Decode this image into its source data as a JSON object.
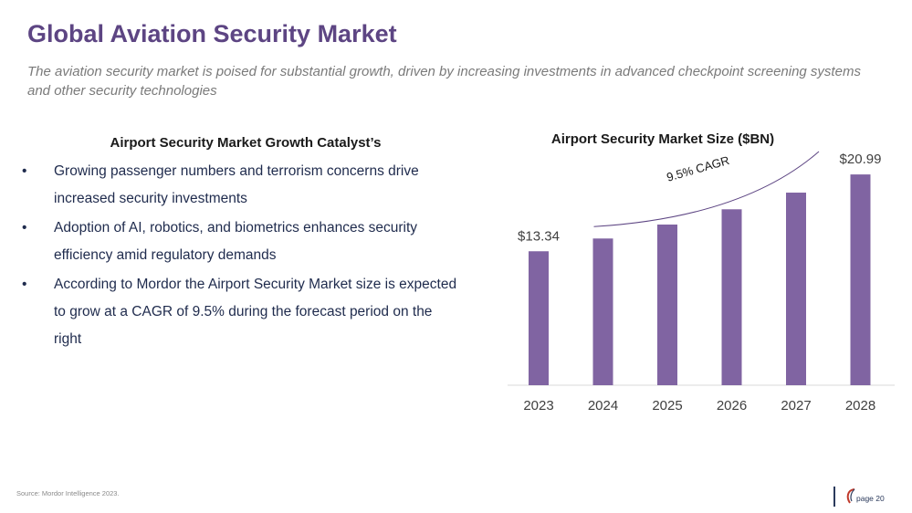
{
  "header": {
    "title": "Global Aviation Security Market",
    "subtitle": "The aviation security market is poised for substantial growth, driven by increasing investments in advanced checkpoint screening systems and other security technologies"
  },
  "left_panel": {
    "heading": "Airport Security Market Growth Catalyst’s",
    "bullet_char": "•",
    "bullets": [
      "Growing passenger numbers and terrorism concerns drive increased security investments",
      "Adoption of AI, robotics, and biometrics enhances security efficiency amid regulatory demands",
      "According to Mordor the Airport Security Market size is expected to grow at a CAGR of 9.5% during the forecast period on the right"
    ]
  },
  "chart_data": {
    "type": "bar",
    "title": "Airport Security Market Size ($BN)",
    "categories": [
      "2023",
      "2024",
      "2025",
      "2026",
      "2027",
      "2028"
    ],
    "values": [
      13.34,
      14.61,
      16.0,
      17.52,
      19.18,
      20.99
    ],
    "data_labels": [
      "$13.34",
      "",
      "",
      "",
      "",
      "$20.99"
    ],
    "annotation": "9.5% CAGR",
    "ylim": [
      0,
      22
    ],
    "bar_color": "#8064a2",
    "grid": false
  },
  "footer": {
    "source": "Source: Mordor Intelligence 2023.",
    "page_label": "page 20"
  },
  "colors": {
    "title": "#5d4583",
    "bullet_text": "#1f2b4d",
    "axis": "#d9d9d9"
  }
}
